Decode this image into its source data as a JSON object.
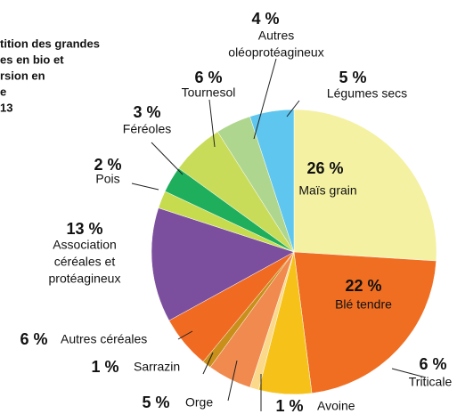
{
  "chart_data": {
    "type": "pie",
    "title_lines": [
      "tition des grandes",
      "es en bio et",
      "rsion en",
      "e",
      "13"
    ],
    "categories": [
      [
        "Maïs grain"
      ],
      [
        "Blé tendre"
      ],
      [
        "Triticale"
      ],
      [
        "Avoine"
      ],
      [
        "Orge"
      ],
      [
        "Sarrazin"
      ],
      [
        "Autres céréales"
      ],
      [
        "Association",
        "céréales et",
        "protéagineux"
      ],
      [
        "Pois"
      ],
      [
        "Féréoles"
      ],
      [
        "Tournesol"
      ],
      [
        "Autres",
        "oléoprotéagineux"
      ],
      [
        "Légumes secs"
      ]
    ],
    "values": [
      26,
      22,
      6,
      1,
      5,
      1,
      6,
      13,
      2,
      3,
      6,
      4,
      5
    ],
    "value_labels": [
      "26 %",
      "22 %",
      "6 %",
      "1 %",
      "5 %",
      "1 %",
      "6 %",
      "13 %",
      "2 %",
      "3 %",
      "6 %",
      "4 %",
      "5 %"
    ],
    "colors": [
      "#f4f1a2",
      "#ef6e22",
      "#f6c21a",
      "#fbd98a",
      "#f08a4e",
      "#c8901a",
      "#f06a22",
      "#7c4f9e",
      "#c6dc4e",
      "#1fae5c",
      "#c9dc5a",
      "#afd68e",
      "#5ec6ef"
    ]
  }
}
